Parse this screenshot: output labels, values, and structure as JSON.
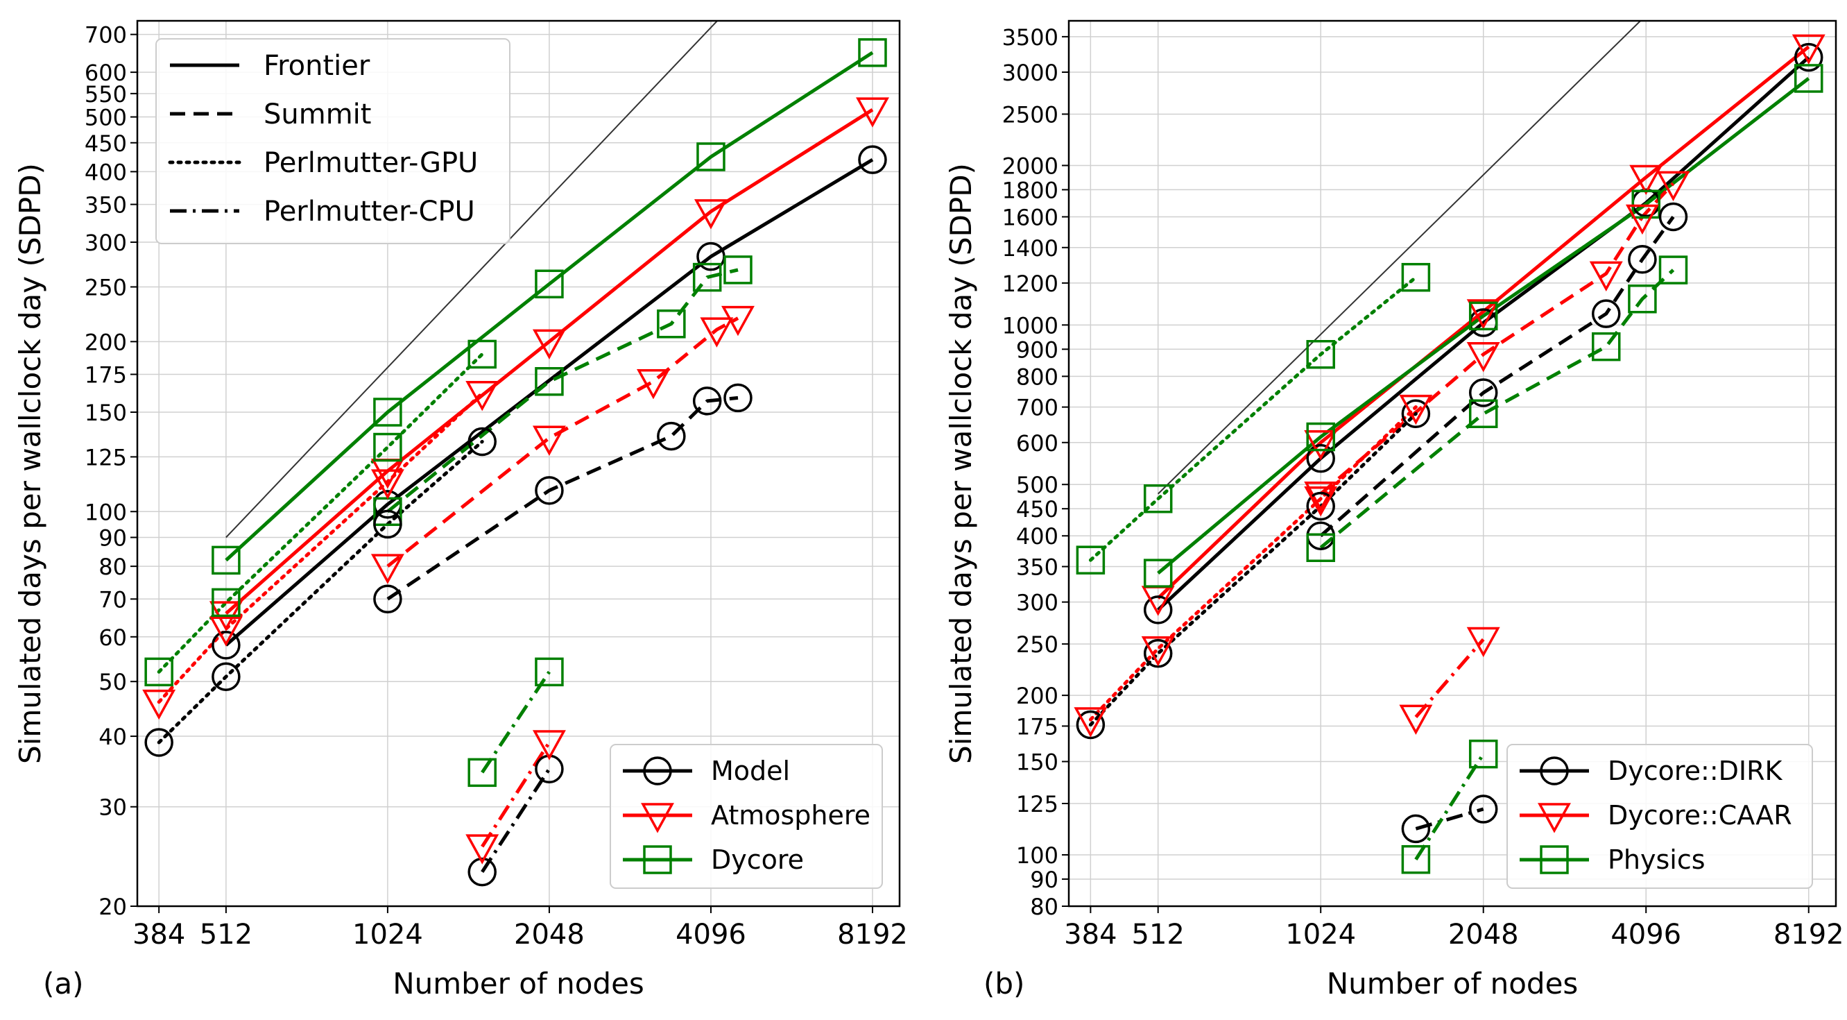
{
  "figure": {
    "panel_labels": [
      "(a)",
      "(b)"
    ]
  },
  "colors": {
    "Model": "#000000",
    "Atmosphere": "#ff0000",
    "Dycore": "#008000",
    "Dycore::DIRK": "#000000",
    "Dycore::CAAR": "#ff0000",
    "Physics": "#008000",
    "grid": "#d0d0d0",
    "reference": "#333333"
  },
  "chart_data": [
    {
      "type": "line",
      "panel_label": "(a)",
      "xlabel": "Number of nodes",
      "ylabel": "Simulated days per wallclock day (SDPD)",
      "x_scale": "log2",
      "y_scale": "log",
      "xlim": [
        350,
        9200
      ],
      "ylim": [
        20,
        740
      ],
      "x_ticks": [
        384,
        512,
        1024,
        2048,
        4096,
        8192
      ],
      "y_ticks": [
        20,
        30,
        40,
        50,
        60,
        70,
        80,
        90,
        100,
        125,
        150,
        175,
        200,
        250,
        300,
        350,
        400,
        450,
        500,
        550,
        600,
        700
      ],
      "grid": true,
      "style_legend": {
        "placement": "top-left",
        "entries": [
          {
            "label": "Frontier",
            "dash": "solid"
          },
          {
            "label": "Summit",
            "dash": "dashed"
          },
          {
            "label": "Perlmutter-GPU",
            "dash": "dotted"
          },
          {
            "label": "Perlmutter-CPU",
            "dash": "dashdot"
          }
        ]
      },
      "series_legend": {
        "placement": "bottom-right",
        "entries": [
          {
            "label": "Model",
            "marker": "circle"
          },
          {
            "label": "Atmosphere",
            "marker": "triangle-down"
          },
          {
            "label": "Dycore",
            "marker": "square"
          }
        ]
      },
      "reference_line": {
        "from": [
          512,
          90
        ],
        "slope_per_doubling": 2
      },
      "series": [
        {
          "name": "Model",
          "machine": "Frontier",
          "marker": "circle",
          "x": [
            512,
            1024,
            4096,
            8192
          ],
          "y": [
            58,
            103,
            283,
            420
          ]
        },
        {
          "name": "Atmosphere",
          "machine": "Frontier",
          "marker": "triangle-down",
          "x": [
            512,
            1024,
            2048,
            4096,
            8192
          ],
          "y": [
            66,
            118,
            200,
            340,
            515
          ]
        },
        {
          "name": "Dycore",
          "machine": "Frontier",
          "marker": "square",
          "x": [
            512,
            1024,
            2048,
            4096,
            8192
          ],
          "y": [
            82,
            150,
            253,
            425,
            650
          ]
        },
        {
          "name": "Model",
          "machine": "Summit",
          "marker": "circle",
          "x": [
            1024,
            2048,
            3456,
            4032,
            4600
          ],
          "y": [
            70,
            109,
            136,
            157,
            159
          ]
        },
        {
          "name": "Atmosphere",
          "machine": "Summit",
          "marker": "triangle-down",
          "x": [
            1024,
            2048,
            3200,
            4200,
            4600
          ],
          "y": [
            80,
            135,
            170,
            210,
            220
          ]
        },
        {
          "name": "Dycore",
          "machine": "Summit",
          "marker": "square",
          "x": [
            1024,
            2048,
            3456,
            4032,
            4600
          ],
          "y": [
            100,
            170,
            215,
            260,
            268
          ]
        },
        {
          "name": "Model",
          "machine": "Perlmutter-GPU",
          "marker": "circle",
          "x": [
            384,
            512,
            1024,
            1536
          ],
          "y": [
            39,
            51,
            95,
            133
          ]
        },
        {
          "name": "Atmosphere",
          "machine": "Perlmutter-GPU",
          "marker": "triangle-down",
          "x": [
            384,
            512,
            1024,
            1536
          ],
          "y": [
            46,
            62,
            113,
            162
          ]
        },
        {
          "name": "Dycore",
          "machine": "Perlmutter-GPU",
          "marker": "square",
          "x": [
            384,
            512,
            1024,
            1536
          ],
          "y": [
            52,
            69,
            130,
            190
          ]
        },
        {
          "name": "Model",
          "machine": "Perlmutter-CPU",
          "marker": "circle",
          "x": [
            1536,
            2048
          ],
          "y": [
            23,
            35
          ]
        },
        {
          "name": "Atmosphere",
          "machine": "Perlmutter-CPU",
          "marker": "triangle-down",
          "x": [
            1536,
            2048
          ],
          "y": [
            25.5,
            39
          ]
        },
        {
          "name": "Dycore",
          "machine": "Perlmutter-CPU",
          "marker": "square",
          "x": [
            1536,
            2048
          ],
          "y": [
            34.5,
            52
          ]
        }
      ]
    },
    {
      "type": "line",
      "panel_label": "(b)",
      "xlabel": "Number of nodes",
      "ylabel": "Simulated days per wallclock day (SDPD)",
      "x_scale": "log2",
      "y_scale": "log",
      "xlim": [
        350,
        9200
      ],
      "ylim": [
        80,
        3750
      ],
      "x_ticks": [
        384,
        512,
        1024,
        2048,
        4096,
        8192
      ],
      "y_ticks": [
        80,
        90,
        100,
        125,
        150,
        175,
        200,
        250,
        300,
        350,
        400,
        450,
        500,
        600,
        700,
        800,
        900,
        1000,
        1200,
        1400,
        1600,
        1800,
        2000,
        2500,
        3000,
        3500
      ],
      "grid": true,
      "series_legend": {
        "placement": "bottom-right",
        "entries": [
          {
            "label": "Dycore::DIRK",
            "marker": "circle"
          },
          {
            "label": "Dycore::CAAR",
            "marker": "triangle-down"
          },
          {
            "label": "Physics",
            "marker": "square"
          }
        ]
      },
      "reference_line": {
        "from": [
          512,
          480
        ],
        "slope_per_doubling": 2
      },
      "series": [
        {
          "name": "Dycore::DIRK",
          "machine": "Frontier",
          "marker": "circle",
          "x": [
            512,
            1024,
            2048,
            4096,
            8192
          ],
          "y": [
            290,
            560,
            1010,
            1700,
            3200
          ]
        },
        {
          "name": "Dycore::CAAR",
          "machine": "Frontier",
          "marker": "triangle-down",
          "x": [
            512,
            1024,
            2048,
            4096,
            8192
          ],
          "y": [
            305,
            600,
            1060,
            1900,
            3350
          ]
        },
        {
          "name": "Physics",
          "machine": "Frontier",
          "marker": "square",
          "x": [
            512,
            1024,
            2048,
            4096,
            8192
          ],
          "y": [
            340,
            615,
            1040,
            1690,
            2920
          ]
        },
        {
          "name": "Dycore::DIRK",
          "machine": "Summit",
          "marker": "circle",
          "x": [
            1024,
            2048,
            3456,
            4032,
            4600
          ],
          "y": [
            400,
            745,
            1050,
            1330,
            1600
          ]
        },
        {
          "name": "Dycore::CAAR",
          "machine": "Summit",
          "marker": "triangle-down",
          "x": [
            1024,
            2048,
            3456,
            4032,
            4600
          ],
          "y": [
            480,
            880,
            1250,
            1600,
            1850
          ]
        },
        {
          "name": "Physics",
          "machine": "Summit",
          "marker": "square",
          "x": [
            1024,
            2048,
            3456,
            4032,
            4600
          ],
          "y": [
            380,
            680,
            910,
            1120,
            1270
          ]
        },
        {
          "name": "Dycore::DIRK",
          "machine": "Perlmutter-GPU",
          "marker": "circle",
          "x": [
            384,
            512,
            1024,
            1536
          ],
          "y": [
            176,
            240,
            455,
            680
          ]
        },
        {
          "name": "Dycore::CAAR",
          "machine": "Perlmutter-GPU",
          "marker": "triangle-down",
          "x": [
            384,
            512,
            1024,
            1536
          ],
          "y": [
            180,
            245,
            470,
            700
          ]
        },
        {
          "name": "Physics",
          "machine": "Perlmutter-GPU",
          "marker": "square",
          "x": [
            384,
            512,
            1024,
            1536
          ],
          "y": [
            360,
            470,
            880,
            1230
          ]
        },
        {
          "name": "Dycore::DIRK",
          "machine": "Perlmutter-CPU",
          "marker": "circle",
          "x": [
            1536,
            2048
          ],
          "y": [
            112,
            122
          ]
        },
        {
          "name": "Dycore::CAAR",
          "machine": "Perlmutter-CPU",
          "marker": "triangle-down",
          "x": [
            1536,
            2048
          ],
          "y": [
            182,
            255
          ]
        },
        {
          "name": "Physics",
          "machine": "Perlmutter-CPU",
          "marker": "square",
          "x": [
            1536,
            2048
          ],
          "y": [
            98,
            155
          ]
        }
      ]
    }
  ]
}
